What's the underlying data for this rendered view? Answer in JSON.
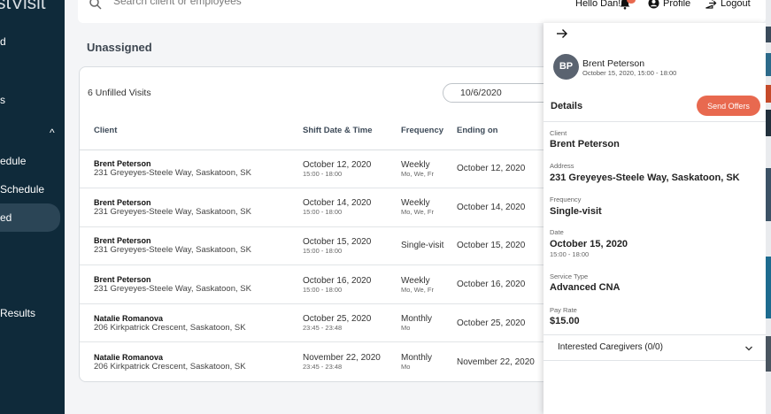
{
  "sidebar": {
    "brand": "stVisit",
    "items": [
      {
        "label": "d"
      },
      {
        "label": "s"
      },
      {
        "label": "edule"
      },
      {
        "label": "Schedule"
      },
      {
        "label": "ed"
      },
      {
        "label": "Results"
      }
    ]
  },
  "topbar": {
    "search_placeholder": "Search client or employees",
    "greeting": "Hello Dan!",
    "profile_label": "Profile",
    "logout_label": "Logout"
  },
  "page_title": "Unassigned",
  "card": {
    "unfilled_count": "6 Unfilled Visits",
    "date_filter": "10/6/2020",
    "columns": [
      "Client",
      "Shift Date & Time",
      "Frequency",
      "Ending on"
    ],
    "rows": [
      {
        "name": "Brent Peterson",
        "address": "231 Greyeyes-Steele Way, Saskatoon, SK",
        "date": "October 12, 2020",
        "time": "15:00 - 18:00",
        "frequency": "Weekly",
        "days": "Mo, We, Fr",
        "ending": "October 12, 2020"
      },
      {
        "name": "Brent Peterson",
        "address": "231 Greyeyes-Steele Way, Saskatoon, SK",
        "date": "October 14, 2020",
        "time": "15:00 - 18:00",
        "frequency": "Weekly",
        "days": "Mo, We, Fr",
        "ending": "October 14, 2020"
      },
      {
        "name": "Brent Peterson",
        "address": "231 Greyeyes-Steele Way, Saskatoon, SK",
        "date": "October 15, 2020",
        "time": "15:00 - 18:00",
        "frequency": "Single-visit",
        "days": "",
        "ending": "October 15, 2020"
      },
      {
        "name": "Brent Peterson",
        "address": "231 Greyeyes-Steele Way, Saskatoon, SK",
        "date": "October 16, 2020",
        "time": "15:00 - 18:00",
        "frequency": "Weekly",
        "days": "Mo, We, Fr",
        "ending": "October 16, 2020"
      },
      {
        "name": "Natalie Romanova",
        "address": "206 Kirkpatrick Crescent, Saskatoon, SK",
        "date": "October 25, 2020",
        "time": "23:45 - 23:48",
        "frequency": "Monthly",
        "days": "Mo",
        "ending": "October 25, 2020"
      },
      {
        "name": "Natalie Romanova",
        "address": "206 Kirkpatrick Crescent, Saskatoon, SK",
        "date": "November 22, 2020",
        "time": "23:45 - 23:48",
        "frequency": "Monthly",
        "days": "Mo",
        "ending": "November 22, 2020"
      }
    ]
  },
  "panel": {
    "avatar_initials": "BP",
    "name": "Brent Peterson",
    "when": "October 15, 2020, 15:00 - 18:00",
    "details_title": "Details",
    "send_offers_label": "Send Offers",
    "fields": [
      {
        "label": "Client",
        "value": "Brent Peterson",
        "sub": ""
      },
      {
        "label": "Address",
        "value": "231 Greyeyes-Steele Way, Saskatoon, SK",
        "sub": ""
      },
      {
        "label": "Frequency",
        "value": "Single-visit",
        "sub": ""
      },
      {
        "label": "Date",
        "value": "October 15, 2020",
        "sub": "15:00 - 18:00"
      },
      {
        "label": "Service Type",
        "value": "Advanced CNA",
        "sub": ""
      },
      {
        "label": "Pay Rate",
        "value": "$15.00",
        "sub": ""
      }
    ],
    "interested_label": "Interested Caregivers (0/0)"
  },
  "colors": {
    "sidebar_bg": "#0f2a3a",
    "accent": "#e8694f",
    "avatar_bg": "#5a6370"
  }
}
